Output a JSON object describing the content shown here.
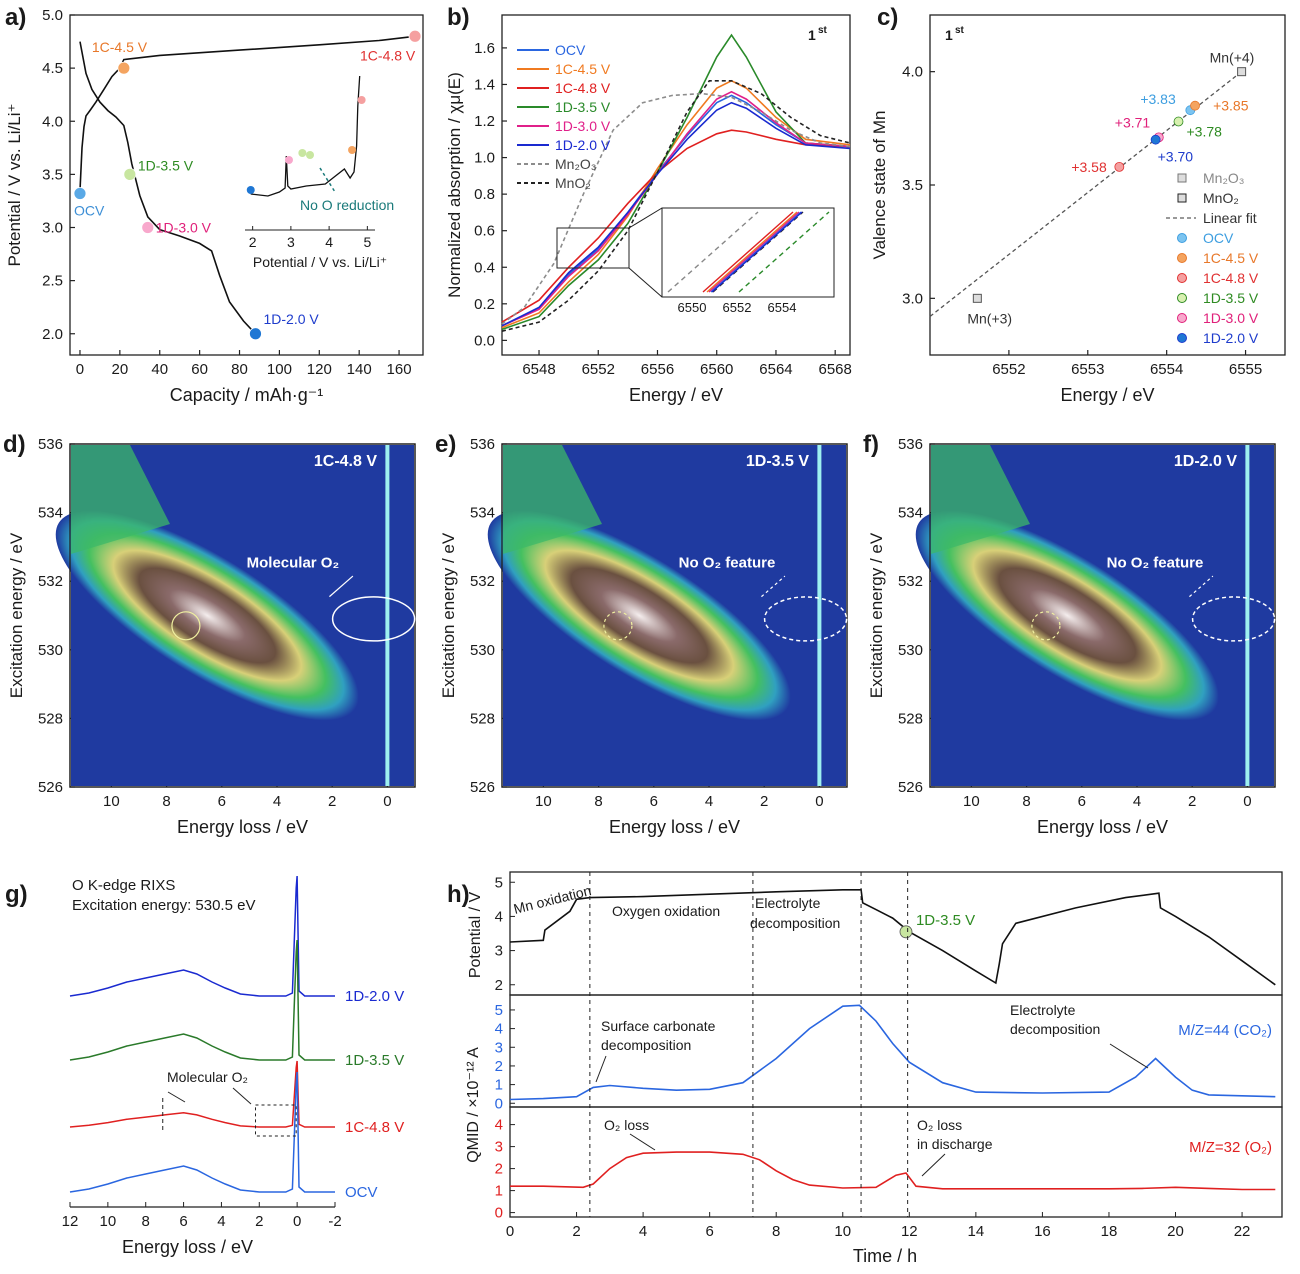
{
  "figure": {
    "panel_count": 8
  },
  "chart_data": [
    {
      "id": "a",
      "type": "line",
      "panel_label": "a)",
      "xlabel": "Capacity / mAh·g⁻¹",
      "ylabel": "Potential / V vs. Li/Li⁺",
      "xlim": [
        -5,
        172
      ],
      "ylim": [
        1.8,
        5.0
      ],
      "xticks": [
        0,
        20,
        40,
        60,
        80,
        100,
        120,
        140,
        160
      ],
      "yticks": [
        2.0,
        2.5,
        3.0,
        3.5,
        4.0,
        4.5,
        5.0
      ],
      "yticklabels": [
        "2.0",
        "2.5",
        "3.0",
        "3.5",
        "4.0",
        "4.5",
        "5.0"
      ],
      "series": [
        {
          "color": "#111111",
          "x": [
            0,
            1,
            2,
            3,
            5,
            8,
            12,
            16,
            20,
            22,
            40,
            80,
            120,
            150,
            168
          ],
          "y": [
            3.35,
            3.75,
            3.95,
            4.05,
            4.1,
            4.18,
            4.3,
            4.42,
            4.5,
            4.58,
            4.62,
            4.67,
            4.72,
            4.76,
            4.8
          ]
        },
        {
          "color": "#111111",
          "x": [
            0,
            3,
            6,
            10,
            14,
            18,
            22,
            24,
            26,
            28,
            30,
            34,
            40,
            50,
            60,
            66,
            70,
            75,
            82,
            88
          ],
          "y": [
            4.75,
            4.45,
            4.3,
            4.18,
            4.1,
            4.04,
            3.96,
            3.8,
            3.6,
            3.45,
            3.3,
            3.1,
            2.98,
            2.92,
            2.85,
            2.78,
            2.55,
            2.3,
            2.12,
            2.0
          ]
        }
      ],
      "points": [
        {
          "label": "OCV",
          "x": 0,
          "y": 3.32,
          "color": "#5aa9e6",
          "label_color": "#3d8fd6"
        },
        {
          "label": "1C-4.5 V",
          "x": 22,
          "y": 4.5,
          "color": "#f4a460",
          "label_color": "#e8782a"
        },
        {
          "label": "1C-4.8 V",
          "x": 168,
          "y": 4.8,
          "color": "#f5a0a0",
          "label_color": "#e03030"
        },
        {
          "label": "1D-3.5 V",
          "x": 25,
          "y": 3.5,
          "color": "#c8e6a0",
          "label_color": "#2e8b22"
        },
        {
          "label": "1D-3.0 V",
          "x": 34,
          "y": 3.0,
          "color": "#f8a8cc",
          "label_color": "#e0207a"
        },
        {
          "label": "1D-2.0 V",
          "x": 88,
          "y": 2.0,
          "color": "#1f77d4",
          "label_color": "#1e3ccc"
        }
      ],
      "inset": {
        "xlabel": "Potential / V vs. Li/Li⁺",
        "xticks": [
          2,
          3,
          4,
          5
        ],
        "annotation": "No O reduction",
        "annotation_color": "#1a7a7a"
      }
    },
    {
      "id": "b",
      "type": "line",
      "panel_label": "b)",
      "xlabel": "Energy / eV",
      "ylabel": "Normalized absorption / χμ(E)",
      "xlim": [
        6545.5,
        6569
      ],
      "ylim": [
        -0.08,
        1.78
      ],
      "xticks": [
        6548,
        6552,
        6556,
        6560,
        6564,
        6568
      ],
      "yticks": [
        0.0,
        0.2,
        0.4,
        0.6,
        0.8,
        1.0,
        1.2,
        1.4,
        1.6
      ],
      "yticklabels": [
        "0.0",
        "0.2",
        "0.4",
        "0.6",
        "0.8",
        "1.0",
        "1.2",
        "1.4",
        "1.6"
      ],
      "corner_label": "1",
      "corner_label_sup": "st",
      "inset": {
        "xticks": [
          6550,
          6552,
          6554
        ]
      },
      "series": [
        {
          "name": "OCV",
          "color": "#2a66e0",
          "dash": false,
          "x": [
            6545.5,
            6548,
            6550,
            6552,
            6554,
            6556,
            6558,
            6560,
            6561,
            6562,
            6564,
            6566,
            6569
          ],
          "y": [
            0.08,
            0.18,
            0.36,
            0.5,
            0.7,
            0.92,
            1.12,
            1.3,
            1.34,
            1.3,
            1.18,
            1.08,
            1.06
          ]
        },
        {
          "name": "1C-4.5 V",
          "color": "#f07a20",
          "dash": false,
          "x": [
            6545.5,
            6548,
            6550,
            6552,
            6554,
            6556,
            6558,
            6560,
            6561,
            6562,
            6564,
            6566,
            6569
          ],
          "y": [
            0.07,
            0.15,
            0.32,
            0.47,
            0.68,
            0.94,
            1.18,
            1.38,
            1.42,
            1.38,
            1.22,
            1.1,
            1.07
          ]
        },
        {
          "name": "1C-4.8 V",
          "color": "#e02020",
          "dash": false,
          "x": [
            6545.5,
            6548,
            6550,
            6552,
            6554,
            6556,
            6558,
            6560,
            6561,
            6562,
            6564,
            6566,
            6569
          ],
          "y": [
            0.1,
            0.22,
            0.4,
            0.56,
            0.75,
            0.92,
            1.05,
            1.13,
            1.15,
            1.14,
            1.1,
            1.07,
            1.06
          ]
        },
        {
          "name": "1D-3.5 V",
          "color": "#2a8a2a",
          "dash": false,
          "x": [
            6545.5,
            6548,
            6550,
            6552,
            6554,
            6556,
            6558,
            6560,
            6561,
            6562,
            6564,
            6566,
            6569
          ],
          "y": [
            0.06,
            0.13,
            0.3,
            0.44,
            0.64,
            0.92,
            1.22,
            1.55,
            1.67,
            1.55,
            1.25,
            1.08,
            1.06
          ]
        },
        {
          "name": "1D-3.0 V",
          "color": "#e0208a",
          "dash": false,
          "x": [
            6545.5,
            6548,
            6550,
            6552,
            6554,
            6556,
            6558,
            6560,
            6561,
            6562,
            6564,
            6566,
            6569
          ],
          "y": [
            0.08,
            0.17,
            0.35,
            0.49,
            0.69,
            0.91,
            1.13,
            1.32,
            1.36,
            1.32,
            1.19,
            1.08,
            1.06
          ]
        },
        {
          "name": "1D-2.0 V",
          "color": "#1a2ad0",
          "dash": false,
          "x": [
            6545.5,
            6548,
            6550,
            6552,
            6554,
            6556,
            6558,
            6560,
            6561,
            6562,
            6564,
            6566,
            6569
          ],
          "y": [
            0.08,
            0.18,
            0.37,
            0.51,
            0.7,
            0.91,
            1.1,
            1.26,
            1.3,
            1.27,
            1.16,
            1.07,
            1.05
          ]
        },
        {
          "name": "Mn₂O₃",
          "color": "#8c8c8c",
          "dash": true,
          "x": [
            6545.5,
            6547,
            6549,
            6551,
            6553,
            6555,
            6557,
            6559,
            6561,
            6563,
            6565,
            6567,
            6569
          ],
          "y": [
            0.09,
            0.18,
            0.42,
            0.8,
            1.15,
            1.3,
            1.34,
            1.35,
            1.33,
            1.25,
            1.15,
            1.08,
            1.06
          ]
        },
        {
          "name": "MnO₂",
          "color": "#222222",
          "dash": true,
          "x": [
            6545.5,
            6548,
            6550,
            6552,
            6554,
            6556,
            6558,
            6559.5,
            6561,
            6563,
            6565,
            6567,
            6569
          ],
          "y": [
            0.05,
            0.1,
            0.22,
            0.38,
            0.6,
            0.92,
            1.25,
            1.42,
            1.42,
            1.35,
            1.22,
            1.12,
            1.08
          ]
        }
      ]
    },
    {
      "id": "c",
      "type": "scatter",
      "panel_label": "c)",
      "xlabel": "Energy / eV",
      "ylabel": "Valence state of Mn",
      "xlim": [
        6551,
        6555.5
      ],
      "ylim": [
        2.75,
        4.25
      ],
      "xticks": [
        6552,
        6553,
        6554,
        6555
      ],
      "yticks": [
        3.0,
        3.5,
        4.0
      ],
      "yticklabels": [
        "3.0",
        "3.5",
        "4.0"
      ],
      "corner_label": "1",
      "corner_label_sup": "st",
      "fit": {
        "x": [
          6551,
          6554.95
        ],
        "y": [
          2.92,
          4.0
        ]
      },
      "references": [
        {
          "label": "Mn(+3)",
          "x": 6551.6,
          "y": 3.0
        },
        {
          "label": "Mn(+4)",
          "x": 6554.95,
          "y": 4.0
        }
      ],
      "points": [
        {
          "label": "+3.83",
          "x": 6554.3,
          "y": 3.83,
          "color": "#7cc4f0",
          "label_color": "#3d9ee0"
        },
        {
          "label": "+3.85",
          "x": 6554.36,
          "y": 3.85,
          "color": "#f4a460",
          "label_color": "#e8782a"
        },
        {
          "label": "+3.58",
          "x": 6553.4,
          "y": 3.58,
          "color": "#f5a0a0",
          "label_color": "#e03030"
        },
        {
          "label": "+3.78",
          "x": 6554.15,
          "y": 3.78,
          "color": "#d8f0b0",
          "label_color": "#2e8b22"
        },
        {
          "label": "+3.71",
          "x": 6553.9,
          "y": 3.71,
          "color": "#f8a8cc",
          "label_color": "#e0207a"
        },
        {
          "label": "+3.70",
          "x": 6553.86,
          "y": 3.7,
          "color": "#1f77d4",
          "label_color": "#1e3ccc"
        }
      ],
      "legend": [
        "Mn₂O₃",
        "MnO₂",
        "Linear fit",
        "OCV",
        "1C-4.5 V",
        "1C-4.8 V",
        "1D-3.5 V",
        "1D-3.0 V",
        "1D-2.0 V"
      ],
      "legend_colors": [
        "#888888",
        "#333333",
        "#333333",
        "#3d9ee0",
        "#e8782a",
        "#e03030",
        "#2e8b22",
        "#e0207a",
        "#1e3ccc"
      ]
    },
    {
      "id": "d",
      "type": "heatmap",
      "panel_label": "d)",
      "title": "1C-4.8 V",
      "xlabel": "Energy loss / eV",
      "ylabel": "Excitation energy / eV",
      "xlim": [
        11.5,
        -1
      ],
      "ylim": [
        526,
        536
      ],
      "xticks": [
        10,
        8,
        6,
        4,
        2,
        0
      ],
      "yticks": [
        526,
        528,
        530,
        532,
        534,
        536
      ],
      "annotation": "Molecular O₂",
      "annotation_sub": "2",
      "circle_dashed": false
    },
    {
      "id": "e",
      "type": "heatmap",
      "panel_label": "e)",
      "title": "1D-3.5 V",
      "xlabel": "Energy loss / eV",
      "ylabel": "Excitation energy / eV",
      "xlim": [
        11.5,
        -1
      ],
      "ylim": [
        526,
        536
      ],
      "xticks": [
        10,
        8,
        6,
        4,
        2,
        0
      ],
      "yticks": [
        526,
        528,
        530,
        532,
        534,
        536
      ],
      "annotation": "No O₂ feature",
      "circle_dashed": true
    },
    {
      "id": "f",
      "type": "heatmap",
      "panel_label": "f)",
      "title": "1D-2.0 V",
      "xlabel": "Energy loss / eV",
      "ylabel": "Excitation energy / eV",
      "xlim": [
        11.5,
        -1
      ],
      "ylim": [
        526,
        536
      ],
      "xticks": [
        10,
        8,
        6,
        4,
        2,
        0
      ],
      "yticks": [
        526,
        528,
        530,
        532,
        534,
        536
      ],
      "annotation": "No O₂ feature",
      "circle_dashed": true
    },
    {
      "id": "g",
      "type": "line",
      "panel_label": "g)",
      "title_lines": [
        "O K-edge RIXS",
        "Excitation energy: 530.5 eV"
      ],
      "xlabel": "Energy loss / eV",
      "xlim": [
        12,
        -2
      ],
      "xticks": [
        12,
        10,
        8,
        6,
        4,
        2,
        0,
        -2
      ],
      "annotation": "Molecular O₂",
      "series": [
        {
          "name": "1D-2.0 V",
          "color": "#1a2ad0"
        },
        {
          "name": "1D-3.5 V",
          "color": "#2a7a2a"
        },
        {
          "name": "1C-4.8 V",
          "color": "#e02020"
        },
        {
          "name": "OCV",
          "color": "#2a66e0"
        }
      ]
    },
    {
      "id": "h",
      "type": "line",
      "panel_label": "h)",
      "xlabel": "Time / h",
      "xlim": [
        0,
        23.2
      ],
      "xticks": [
        0,
        2,
        4,
        6,
        8,
        10,
        12,
        14,
        16,
        18,
        20,
        22
      ],
      "ylabel_top": "Potential / V",
      "ylabel_bottom": "QMID / ×10⁻¹² A",
      "potential": {
        "ylim": [
          1.7,
          5.3
        ],
        "yticks": [
          2,
          3,
          4,
          5
        ],
        "x": [
          0,
          1,
          1.05,
          1.8,
          2,
          2.4,
          4,
          6,
          8,
          10,
          10.55,
          10.6,
          11,
          11.5,
          12,
          13,
          14,
          14.6,
          14.7,
          14.8,
          15.2,
          17,
          18.5,
          19.5,
          19.55,
          20,
          21,
          22,
          23
        ],
        "y": [
          3.25,
          3.3,
          3.6,
          4.15,
          4.5,
          4.55,
          4.58,
          4.65,
          4.72,
          4.78,
          4.78,
          4.4,
          4.2,
          3.95,
          3.55,
          3.0,
          2.4,
          2.05,
          2.6,
          3.2,
          3.8,
          4.25,
          4.55,
          4.68,
          4.25,
          4.0,
          3.4,
          2.7,
          2.0
        ],
        "marker": {
          "label": "1D-3.5 V",
          "x": 11.9,
          "y": 3.55,
          "color": "#c8e6a0",
          "label_color": "#2e8b22"
        },
        "phases": [
          "Mn oxidation",
          "Oxygen oxidation",
          "Electrolyte",
          "decomposition"
        ],
        "dividers": [
          2.4,
          7.3,
          10.55,
          11.95
        ]
      },
      "co2": {
        "name": "M/Z=44 (CO₂)",
        "color": "#2a66e0",
        "ylim": [
          -0.2,
          5.8
        ],
        "yticks": [
          0,
          1,
          2,
          3,
          4,
          5
        ],
        "x": [
          0,
          1,
          2,
          2.5,
          3,
          4,
          5,
          6,
          7,
          8,
          9,
          10,
          10.5,
          11,
          11.5,
          12,
          13,
          14,
          16,
          18,
          18.8,
          19.4,
          20,
          20.5,
          21,
          22,
          23
        ],
        "y": [
          0.2,
          0.25,
          0.35,
          0.85,
          0.95,
          0.8,
          0.7,
          0.75,
          1.1,
          2.4,
          4.0,
          5.2,
          5.25,
          4.4,
          3.2,
          2.2,
          1.1,
          0.6,
          0.55,
          0.6,
          1.4,
          2.4,
          1.4,
          0.7,
          0.45,
          0.4,
          0.35
        ],
        "annotations": [
          "Surface carbonate",
          "decomposition",
          "Electrolyte",
          "decomposition"
        ]
      },
      "o2": {
        "name": "M/Z=32 (O₂)",
        "color": "#e02020",
        "ylim": [
          -0.2,
          4.8
        ],
        "yticks": [
          0,
          1,
          2,
          3,
          4
        ],
        "x": [
          0,
          1,
          2.2,
          2.5,
          3,
          3.5,
          4,
          5,
          6,
          7,
          7.5,
          8,
          8.5,
          9,
          10,
          11,
          11.6,
          11.9,
          12.2,
          13,
          16,
          18,
          19,
          20,
          21,
          22,
          23
        ],
        "y": [
          1.2,
          1.2,
          1.15,
          1.3,
          2.0,
          2.5,
          2.7,
          2.75,
          2.75,
          2.65,
          2.4,
          1.9,
          1.5,
          1.25,
          1.12,
          1.15,
          1.7,
          1.8,
          1.2,
          1.08,
          1.08,
          1.08,
          1.1,
          1.15,
          1.1,
          1.05,
          1.05
        ],
        "annotations": [
          "O₂ loss",
          "O₂ loss",
          "in discharge"
        ]
      }
    }
  ]
}
